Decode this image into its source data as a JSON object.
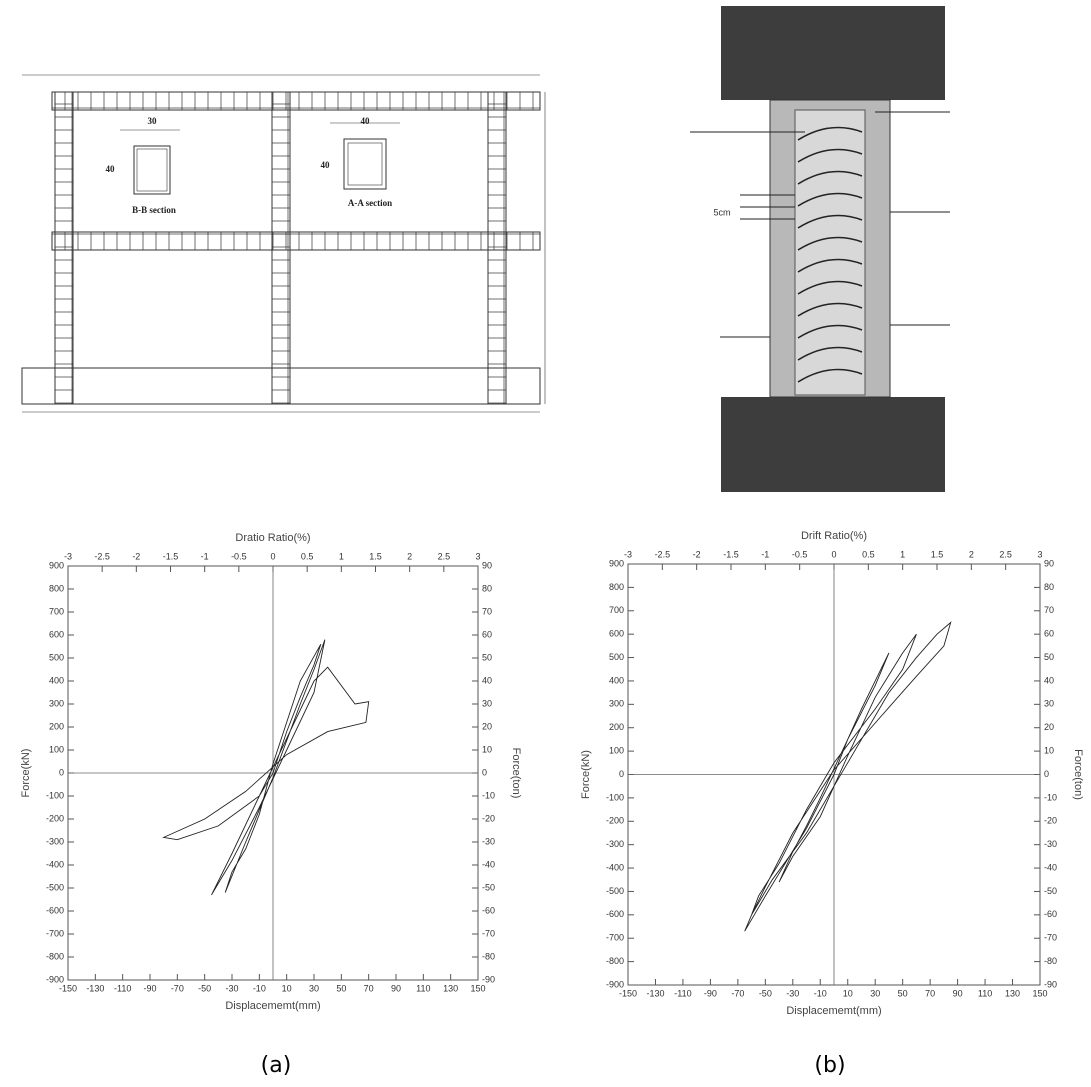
{
  "chart_data": [
    {
      "type": "line",
      "x2_title": "Dratio Ratio(%)",
      "xlabel": "Displacememt(mm)",
      "ylabel": "Force(kN)",
      "y2label": "Force(ton)",
      "caption": "(a)",
      "xlim": [
        -150,
        150
      ],
      "xticks": [
        -150,
        -130,
        -110,
        -90,
        -70,
        -50,
        -30,
        -10,
        10,
        30,
        50,
        70,
        90,
        110,
        130,
        150
      ],
      "x2lim": [
        -3,
        3
      ],
      "x2ticks": [
        -3,
        -2.5,
        -2,
        -1.5,
        -1,
        -0.5,
        0,
        0.5,
        1,
        1.5,
        2,
        2.5,
        3
      ],
      "ylim": [
        -900,
        900
      ],
      "yticks": [
        -900,
        -800,
        -700,
        -600,
        -500,
        -400,
        -300,
        -200,
        -100,
        0,
        100,
        200,
        300,
        400,
        500,
        600,
        700,
        800,
        900
      ],
      "y2lim": [
        -90,
        90
      ],
      "y2ticks": [
        -90,
        -80,
        -70,
        -60,
        -50,
        -40,
        -30,
        -20,
        -10,
        0,
        10,
        20,
        30,
        40,
        50,
        60,
        70,
        80,
        90
      ],
      "grid": false,
      "series": [
        {
          "color": "#222222",
          "x": [
            0,
            10,
            20,
            30,
            35,
            20,
            0,
            -10,
            -20,
            -30,
            -35,
            -20,
            0,
            20,
            30,
            38,
            30,
            10,
            -10,
            -30,
            -40,
            -45,
            -30,
            -10,
            10,
            30,
            40,
            60,
            70,
            68,
            40,
            10,
            -20,
            -50,
            -80,
            -70,
            -40,
            -10,
            0
          ],
          "values": [
            0,
            180,
            330,
            470,
            560,
            400,
            40,
            -180,
            -330,
            -430,
            -520,
            -300,
            -20,
            300,
            450,
            580,
            350,
            100,
            -150,
            -380,
            -480,
            -530,
            -350,
            -100,
            150,
            400,
            460,
            300,
            310,
            220,
            180,
            80,
            -80,
            -200,
            -280,
            -290,
            -230,
            -100,
            0
          ]
        }
      ]
    },
    {
      "type": "line",
      "x2_title": "Drift Ratio(%)",
      "xlabel": "Displacememt(mm)",
      "ylabel": "Force(kN)",
      "y2label": "Force(ton)",
      "caption": "(b)",
      "xlim": [
        -150,
        150
      ],
      "xticks": [
        -150,
        -130,
        -110,
        -90,
        -70,
        -50,
        -30,
        -10,
        10,
        30,
        50,
        70,
        90,
        110,
        130,
        150
      ],
      "x2lim": [
        -3,
        3
      ],
      "x2ticks": [
        -3,
        -2.5,
        -2,
        -1.5,
        -1,
        -0.5,
        0,
        0.5,
        1,
        1.5,
        2,
        2.5,
        3
      ],
      "ylim": [
        -900,
        900
      ],
      "yticks": [
        -900,
        -800,
        -700,
        -600,
        -500,
        -400,
        -300,
        -200,
        -100,
        0,
        100,
        200,
        300,
        400,
        500,
        600,
        700,
        800,
        900
      ],
      "y2lim": [
        -90,
        90
      ],
      "y2ticks": [
        -90,
        -80,
        -70,
        -60,
        -50,
        -40,
        -30,
        -20,
        -10,
        0,
        10,
        20,
        30,
        40,
        50,
        60,
        70,
        80,
        90
      ],
      "grid": false,
      "series": [
        {
          "color": "#222222",
          "x": [
            0,
            10,
            20,
            30,
            40,
            30,
            10,
            -10,
            -20,
            -30,
            -40,
            -30,
            -10,
            10,
            30,
            50,
            60,
            50,
            30,
            0,
            -20,
            -40,
            -55,
            -60,
            -45,
            -20,
            10,
            40,
            60,
            75,
            85,
            80,
            60,
            30,
            0,
            -30,
            -50,
            -60,
            -65,
            -50,
            -20,
            0
          ],
          "values": [
            0,
            150,
            280,
            400,
            520,
            380,
            150,
            -100,
            -220,
            -330,
            -460,
            -350,
            -180,
            80,
            330,
            520,
            600,
            450,
            280,
            50,
            -150,
            -380,
            -520,
            -600,
            -450,
            -250,
            50,
            350,
            500,
            600,
            650,
            550,
            420,
            220,
            20,
            -250,
            -480,
            -600,
            -670,
            -520,
            -230,
            0
          ]
        }
      ]
    }
  ],
  "drawings": {
    "frame": {
      "dim_b": "30",
      "dim_b_h": "40",
      "bb": "B-B section",
      "dim_a": "40",
      "dim_a_h": "40",
      "aa": "A-A section"
    },
    "specimen": {
      "gap": "5cm"
    }
  }
}
